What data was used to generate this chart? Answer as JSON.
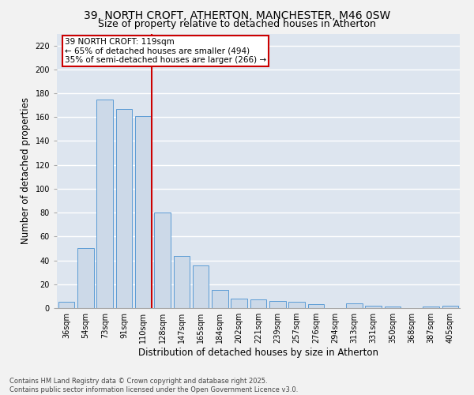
{
  "title1": "39, NORTH CROFT, ATHERTON, MANCHESTER, M46 0SW",
  "title2": "Size of property relative to detached houses in Atherton",
  "xlabel": "Distribution of detached houses by size in Atherton",
  "ylabel": "Number of detached properties",
  "categories": [
    "36sqm",
    "54sqm",
    "73sqm",
    "91sqm",
    "110sqm",
    "128sqm",
    "147sqm",
    "165sqm",
    "184sqm",
    "202sqm",
    "221sqm",
    "239sqm",
    "257sqm",
    "276sqm",
    "294sqm",
    "313sqm",
    "331sqm",
    "350sqm",
    "368sqm",
    "387sqm",
    "405sqm"
  ],
  "values": [
    5,
    50,
    175,
    167,
    161,
    80,
    44,
    36,
    15,
    8,
    7,
    6,
    5,
    3,
    0,
    4,
    2,
    1,
    0,
    1,
    2
  ],
  "bar_color": "#ccd9e8",
  "bar_edge_color": "#5b9bd5",
  "red_line_index": 4,
  "annotation_title": "39 NORTH CROFT: 119sqm",
  "annotation_line1": "← 65% of detached houses are smaller (494)",
  "annotation_line2": "35% of semi-detached houses are larger (266) →",
  "annotation_box_color": "#ffffff",
  "annotation_box_edge_color": "#cc0000",
  "ylim": [
    0,
    230
  ],
  "yticks": [
    0,
    20,
    40,
    60,
    80,
    100,
    120,
    140,
    160,
    180,
    200,
    220
  ],
  "background_color": "#dde5ef",
  "grid_color": "#ffffff",
  "fig_background": "#f2f2f2",
  "footer1": "Contains HM Land Registry data © Crown copyright and database right 2025.",
  "footer2": "Contains public sector information licensed under the Open Government Licence v3.0.",
  "title_fontsize": 10,
  "subtitle_fontsize": 9,
  "tick_fontsize": 7,
  "label_fontsize": 8.5,
  "annotation_fontsize": 7.5,
  "footer_fontsize": 6
}
